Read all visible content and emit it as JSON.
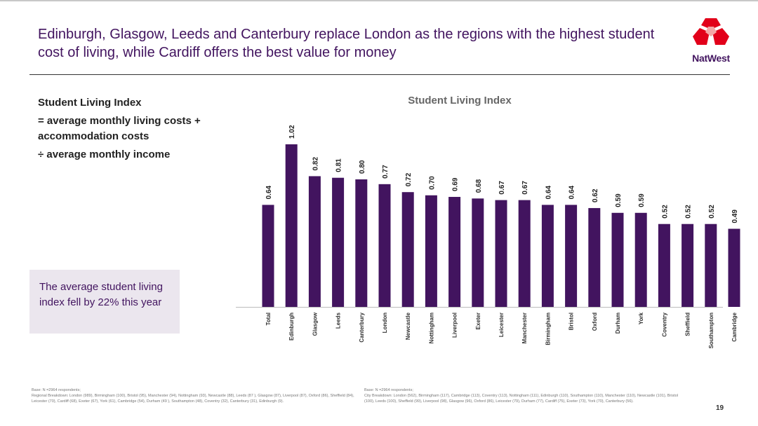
{
  "header": {
    "title": "Edinburgh, Glasgow, Leeds and Canterbury replace London as the regions with the highest student cost of living, while Cardiff offers the best value for money",
    "logo_text": "NatWest"
  },
  "definition": {
    "heading": "Student Living Index",
    "line1": "= average monthly living costs + accommodation costs",
    "line2": "÷ average monthly income"
  },
  "callout": {
    "text": "The average student living index fell by 22% this year"
  },
  "colors": {
    "bar": "#42145f",
    "title": "#42145f",
    "logo_red": "#e2001a"
  },
  "chart_data": {
    "type": "bar",
    "title": "Student Living Index",
    "categories": [
      "Total",
      "Edinburgh",
      "Glasgow",
      "Leeds",
      "Canterbury",
      "London",
      "Newcastle",
      "Nottingham",
      "Liverpool",
      "Exeter",
      "Leicester",
      "Manchester",
      "Birmingham",
      "Bristol",
      "Oxford",
      "Durham",
      "York",
      "Coventry",
      "Sheffield",
      "Southampton",
      "Cambridge"
    ],
    "values": [
      0.64,
      1.02,
      0.82,
      0.81,
      0.8,
      0.77,
      0.72,
      0.7,
      0.69,
      0.68,
      0.67,
      0.67,
      0.64,
      0.64,
      0.62,
      0.59,
      0.59,
      0.52,
      0.52,
      0.52,
      0.49
    ],
    "data_labels": [
      "0.64",
      "1.02",
      "0.82",
      "0.81",
      "0.80",
      "0.77",
      "0.72",
      "0.70",
      "0.69",
      "0.68",
      "0.67",
      "0.67",
      "0.64",
      "0.64",
      "0.62",
      "0.59",
      "0.59",
      "0.52",
      "0.52",
      "0.52",
      "0.49"
    ],
    "ylim": [
      0,
      1.1
    ],
    "grid": false,
    "legend": "none"
  },
  "footnotes": {
    "left_base": "Base: N =2964 respondents;",
    "left_text": "Regional Breakdown: London (989), Birmingham (100), Bristol (95), Manchester (94), Nottingham (93), Newcastle (88), Leeds (87 ), Glasgow (87), Liverpool (87), Oxford (86), Sheffield (84), Leicester (70), Cardiff (68), Exeter (67), York (61), Cambridge (54), Durham (49 ), Southampton (48), Coventry (32), Canterbury (31), Edinburgh (9).",
    "right_base": "Base: N =2964 respondents;",
    "right_text": "City Breakdown: London (562), Birmingham (117), Cambridge (113), Coventry (113), Nottingham (111), Edinburgh (110), Southampton (110), Manchester (110), Newcastle (101), Bristol (100), Leeds (100), Sheffield (99), Liverpool (98), Glasgow (96), Oxford (86), Leicester (79), Durham (77), Cardiff (75), Exeter (73), York (70), Canterbury (56).",
    "page_number": "19"
  }
}
